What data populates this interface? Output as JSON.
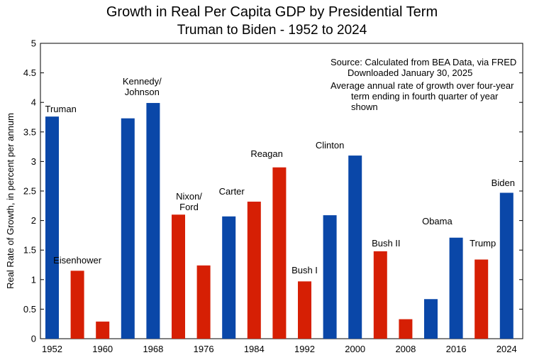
{
  "chart_data": {
    "type": "bar",
    "title": "Growth in Real Per Capita GDP by Presidential Term",
    "subtitle": "Truman to Biden - 1952 to 2024",
    "ylabel": "Real Rate of Growth, in percent per annum",
    "xlabel": "",
    "ylim": [
      0,
      5
    ],
    "yticks": [
      "0",
      "0.5",
      "1",
      "1.5",
      "2",
      "2.5",
      "3",
      "3.5",
      "4",
      "4.5",
      "5"
    ],
    "xticks": [
      "1952",
      "1960",
      "1968",
      "1976",
      "1984",
      "1992",
      "2000",
      "2008",
      "2016",
      "2024"
    ],
    "categories": [
      "1952",
      "1956",
      "1960",
      "1964",
      "1968",
      "1972",
      "1976",
      "1980",
      "1984",
      "1988",
      "1992",
      "1996",
      "2000",
      "2004",
      "2008",
      "2012",
      "2016",
      "2020",
      "2024"
    ],
    "values": [
      3.76,
      1.15,
      0.29,
      3.73,
      3.99,
      2.1,
      1.24,
      2.07,
      2.32,
      2.9,
      0.97,
      2.09,
      3.1,
      1.48,
      0.33,
      0.67,
      1.71,
      1.34,
      2.47
    ],
    "colors": [
      "#0a47a8",
      "#d61f04",
      "#d61f04",
      "#0a47a8",
      "#0a47a8",
      "#d61f04",
      "#d61f04",
      "#0a47a8",
      "#d61f04",
      "#d61f04",
      "#d61f04",
      "#0a47a8",
      "#0a47a8",
      "#d61f04",
      "#d61f04",
      "#0a47a8",
      "#0a47a8",
      "#d61f04",
      "#0a47a8"
    ],
    "party_colors": {
      "democrat": "#0a47a8",
      "republican": "#d61f04"
    },
    "president_labels": [
      {
        "lines": [
          "Truman"
        ],
        "year": 1952
      },
      {
        "lines": [
          "Eisenhower"
        ],
        "year": 1956
      },
      {
        "lines": [
          "Kennedy/",
          "Johnson"
        ],
        "year": 1964
      },
      {
        "lines": [
          "Nixon/",
          "Ford"
        ],
        "year": 1972
      },
      {
        "lines": [
          "Carter"
        ],
        "year": 1980
      },
      {
        "lines": [
          "Reagan"
        ],
        "year": 1986
      },
      {
        "lines": [
          "Bush I"
        ],
        "year": 1992
      },
      {
        "lines": [
          "Clinton"
        ],
        "year": 1996
      },
      {
        "lines": [
          "Bush II"
        ],
        "year": 2004
      },
      {
        "lines": [
          "Obama"
        ],
        "year": 2013
      },
      {
        "lines": [
          "Trump"
        ],
        "year": 2020
      },
      {
        "lines": [
          "Biden"
        ],
        "year": 2024
      }
    ],
    "annotations": [
      "Source:  Calculated from BEA Data, via FRED",
      "Downloaded January 30, 2025",
      "Average annual rate of growth over four-year",
      "term ending in fourth quarter of year",
      "shown"
    ],
    "grid": false
  }
}
